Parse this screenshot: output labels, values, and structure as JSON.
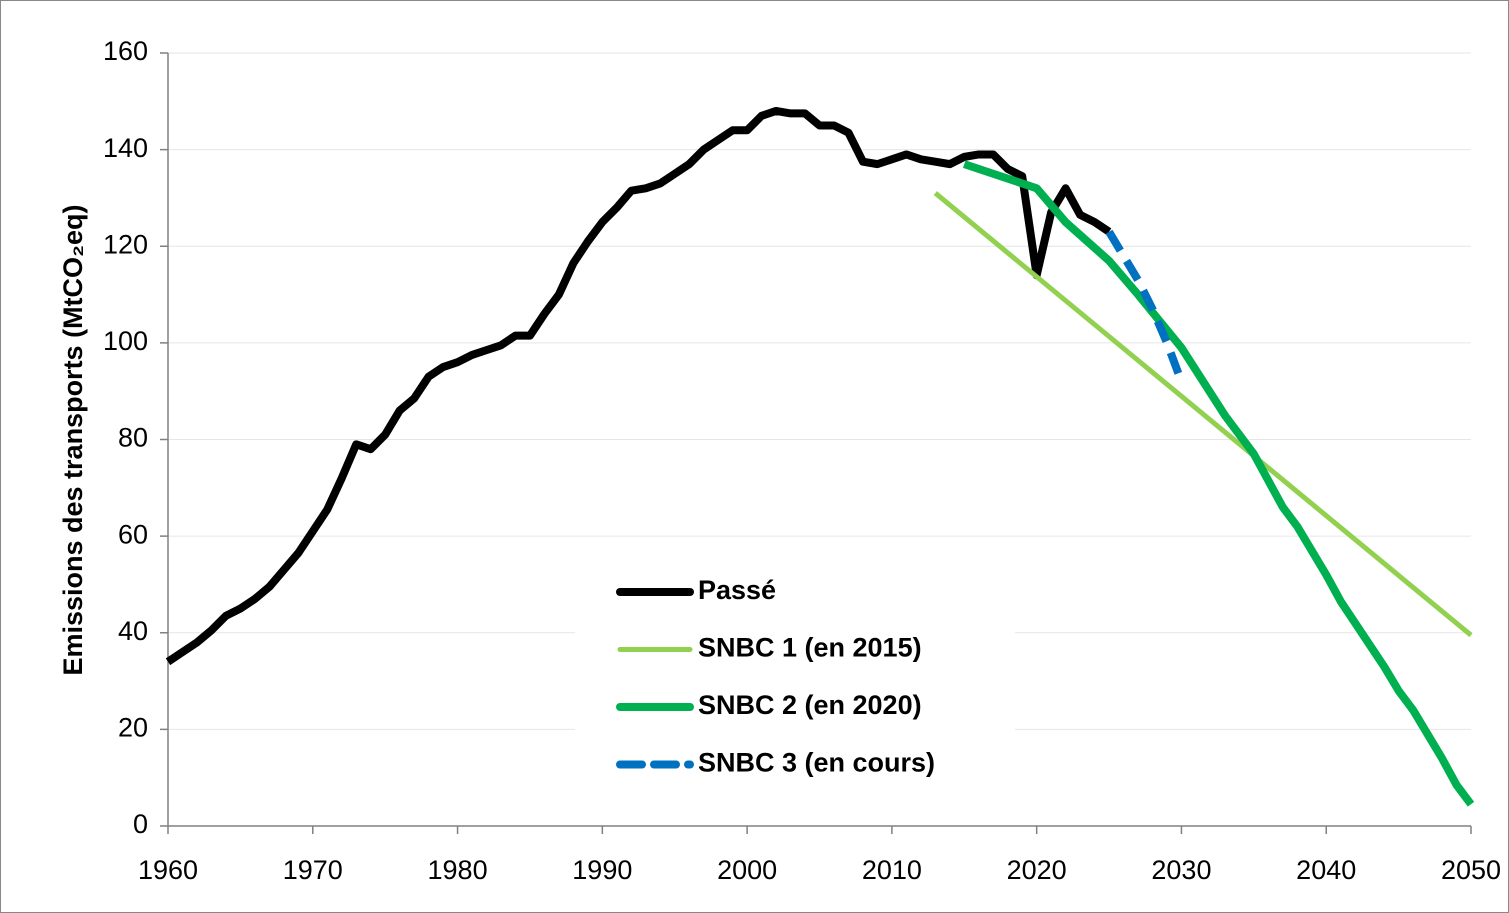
{
  "chart_data": {
    "type": "line",
    "y_label": "Emissions des transports (MtCO₂eq)",
    "xlim": [
      1960,
      2050
    ],
    "xticks": [
      1960,
      1970,
      1980,
      1990,
      2000,
      2010,
      2020,
      2030,
      2040,
      2050
    ],
    "ylim": [
      0,
      160
    ],
    "yticks": [
      0,
      20,
      40,
      60,
      80,
      100,
      120,
      140,
      160
    ],
    "grid": true,
    "legend": "center",
    "series": [
      {
        "name": "Passé",
        "color": "#000000",
        "x": [
          1960,
          1961,
          1962,
          1963,
          1964,
          1965,
          1966,
          1967,
          1968,
          1969,
          1970,
          1971,
          1972,
          1973,
          1974,
          1975,
          1976,
          1977,
          1978,
          1979,
          1980,
          1981,
          1982,
          1983,
          1984,
          1985,
          1986,
          1987,
          1988,
          1989,
          1990,
          1991,
          1992,
          1993,
          1994,
          1995,
          1996,
          1997,
          1998,
          1999,
          2000,
          2001,
          2002,
          2003,
          2004,
          2005,
          2006,
          2007,
          2008,
          2009,
          2010,
          2011,
          2012,
          2013,
          2014,
          2015,
          2016,
          2017,
          2018,
          2019,
          2020,
          2021,
          2022,
          2023,
          2024,
          2025
        ],
        "values": [
          34,
          36,
          38,
          40.5,
          43.5,
          45,
          47,
          49.5,
          53,
          56.5,
          61,
          65.5,
          72,
          79,
          78,
          81,
          86,
          88.5,
          93,
          95,
          96,
          97.5,
          98.5,
          99.5,
          101.5,
          101.5,
          106,
          110,
          116.5,
          121,
          125,
          128,
          131.5,
          132,
          133,
          135,
          137,
          140,
          142,
          144,
          144,
          147,
          148,
          147.5,
          147.5,
          145,
          145,
          143.5,
          137.5,
          137,
          138,
          139,
          138,
          137.5,
          137,
          138.5,
          139,
          139,
          136,
          134.5,
          114,
          127,
          132,
          126.5,
          125,
          123
        ]
      },
      {
        "name": "SNBC 1 (en 2015)",
        "color": "#92d050",
        "x": [
          2013,
          2050
        ],
        "values": [
          131,
          39.5
        ]
      },
      {
        "name": "SNBC 2 (en 2020)",
        "color": "#00b050",
        "x": [
          2015,
          2020,
          2022,
          2025,
          2027,
          2030,
          2033,
          2035,
          2037,
          2038,
          2040,
          2041,
          2042,
          2044,
          2045,
          2046,
          2048,
          2049,
          2050
        ],
        "values": [
          137,
          132,
          125,
          117,
          110,
          99,
          85,
          77,
          66,
          62,
          52,
          46.5,
          42,
          33,
          28,
          24,
          14,
          8.5,
          4.5
        ]
      },
      {
        "name": "SNBC 3 (en cours)",
        "color": "#0070c0",
        "dash": true,
        "x": [
          2025,
          2027,
          2028,
          2029,
          2030
        ],
        "values": [
          123,
          113,
          107,
          100,
          92
        ]
      }
    ]
  }
}
